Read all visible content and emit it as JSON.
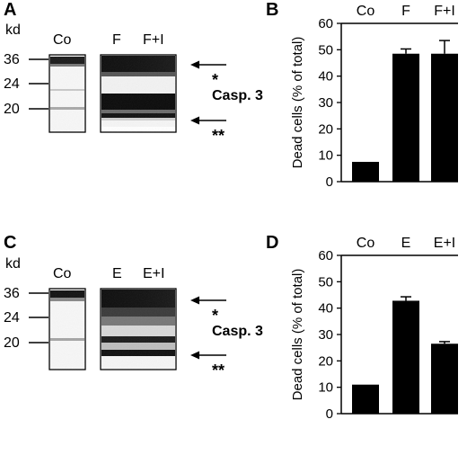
{
  "panels": {
    "A": {
      "letter": "A",
      "unit": "kd",
      "markers": [
        "36",
        "24",
        "20"
      ],
      "lane_control": "Co",
      "lane_1": "F",
      "lane_2": "F+I",
      "protein": "Casp. 3",
      "band_upper": "*",
      "band_lower": "**"
    },
    "C": {
      "letter": "C",
      "unit": "kd",
      "markers": [
        "36",
        "24",
        "20"
      ],
      "lane_control": "Co",
      "lane_1": "E",
      "lane_2": "E+I",
      "protein": "Casp. 3",
      "band_upper": "*",
      "band_lower": "**"
    }
  },
  "chart_data": [
    {
      "type": "bar",
      "panel": "B",
      "categories": [
        "Co",
        "F",
        "F+I"
      ],
      "values": [
        7.5,
        48.5,
        48.5
      ],
      "errors": [
        0,
        1.8,
        5.0
      ],
      "title": "",
      "xlabel": "",
      "ylabel": "Dead cells (% of total)",
      "ylim": [
        0,
        60
      ],
      "yticks": [
        "0",
        "10",
        "20",
        "30",
        "40",
        "50",
        "60"
      ],
      "bar_color": "#000000",
      "grid": false
    },
    {
      "type": "bar",
      "panel": "D",
      "categories": [
        "Co",
        "E",
        "E+I"
      ],
      "values": [
        11,
        42.8,
        26.5
      ],
      "errors": [
        0,
        1.5,
        0.8
      ],
      "title": "",
      "xlabel": "",
      "ylabel": "Dead cells (% of total)",
      "ylim": [
        0,
        60
      ],
      "yticks": [
        "0",
        "10",
        "20",
        "30",
        "40",
        "50",
        "60"
      ],
      "bar_color": "#000000",
      "grid": false
    }
  ]
}
